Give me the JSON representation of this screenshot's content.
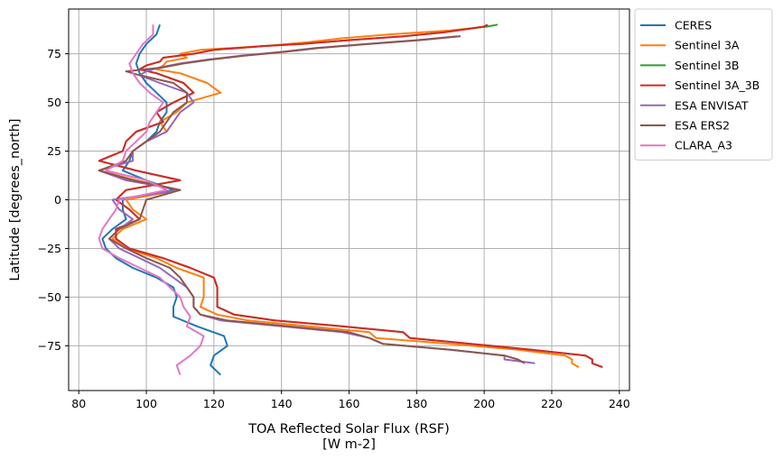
{
  "chart_data": {
    "type": "line",
    "xlabel": "TOA Reflected Solar Flux (RSF)",
    "xlabel_units": "[W m-2]",
    "ylabel": "Latitude [degrees_north]",
    "xlim": [
      77,
      243
    ],
    "ylim": [
      -98,
      98
    ],
    "xticks": [
      80,
      100,
      120,
      140,
      160,
      180,
      200,
      220,
      240
    ],
    "yticks": [
      -75,
      -50,
      -25,
      0,
      25,
      50,
      75
    ],
    "grid": true,
    "legend_position": "outside-upper-right",
    "series": [
      {
        "name": "CERES",
        "color": "#1f77b4",
        "y": [
          90,
          85,
          80,
          75,
          70,
          65,
          60,
          55,
          50,
          45,
          40,
          35,
          30,
          25,
          20,
          15,
          10,
          5,
          0,
          -5,
          -10,
          -15,
          -20,
          -25,
          -30,
          -35,
          -40,
          -45,
          -50,
          -55,
          -60,
          -65,
          -70,
          -75,
          -80,
          -85,
          -90
        ],
        "x": [
          104,
          103,
          100,
          98,
          97,
          98,
          100,
          103,
          106,
          106,
          104,
          103,
          100,
          96,
          95,
          93,
          100,
          108,
          93,
          93,
          94,
          90,
          87,
          88,
          91,
          96,
          103,
          108,
          109,
          108,
          108,
          115,
          123,
          124,
          120,
          119,
          122
        ]
      },
      {
        "name": "Sentinel 3A",
        "color": "#ff7f0e",
        "y": [
          89,
          87,
          85,
          83,
          81,
          79,
          77,
          75,
          73,
          71,
          69,
          67,
          65,
          60,
          55,
          50,
          45,
          40,
          35,
          30,
          25,
          20,
          15,
          10,
          5,
          0,
          -5,
          -10,
          -15,
          -20,
          -25,
          -30,
          -35,
          -40,
          -45,
          -50,
          -55,
          -59,
          -62,
          -65,
          -68,
          -71,
          -74,
          -77,
          -80,
          -82,
          -84,
          -86
        ],
        "x": [
          201,
          190,
          172,
          158,
          148,
          135,
          116,
          110,
          112,
          106,
          105,
          103,
          110,
          118,
          122,
          112,
          109,
          104,
          106,
          100,
          96,
          94,
          86,
          97,
          110,
          94,
          96,
          100,
          93,
          90,
          94,
          103,
          109,
          117,
          117,
          117,
          116,
          121,
          130,
          148,
          166,
          168,
          190,
          210,
          224,
          226,
          226,
          228
        ]
      },
      {
        "name": "Sentinel 3B",
        "color": "#2ca02c",
        "y": [
          90,
          89,
          88,
          86,
          84,
          82,
          80,
          79,
          77,
          75,
          73,
          71,
          69,
          67,
          65,
          60,
          55,
          50,
          45,
          40,
          35,
          30,
          25,
          20,
          15,
          10,
          5,
          0,
          -5,
          -10,
          -15,
          -20,
          -25,
          -30,
          -35,
          -40,
          -45,
          -50,
          -55,
          -59,
          -62,
          -65,
          -68,
          -71,
          -74,
          -77,
          -80,
          -82,
          -84,
          -86
        ],
        "x": [
          204,
          201,
          196,
          188,
          176,
          160,
          146,
          135,
          120,
          114,
          105,
          104,
          100,
          98,
          103,
          111,
          114,
          108,
          103,
          105,
          97,
          94,
          93,
          86,
          97,
          110,
          94,
          91,
          95,
          98,
          91,
          91,
          95,
          105,
          113,
          120,
          121,
          121,
          121,
          126,
          138,
          158,
          176,
          178,
          196,
          214,
          230,
          232,
          232,
          235
        ]
      },
      {
        "name": "Sentinel 3A_3B",
        "color": "#d62728",
        "y": [
          90,
          89,
          88,
          86,
          84,
          82,
          80,
          79,
          77,
          75,
          73,
          71,
          69,
          67,
          65,
          60,
          55,
          50,
          45,
          40,
          35,
          30,
          25,
          20,
          15,
          10,
          5,
          0,
          -5,
          -10,
          -15,
          -20,
          -25,
          -30,
          -35,
          -40,
          -45,
          -50,
          -55,
          -59,
          -62,
          -65,
          -68,
          -71,
          -74,
          -77,
          -80,
          -82,
          -84,
          -86
        ],
        "x": [
          201,
          200,
          196,
          188,
          176,
          160,
          146,
          135,
          120,
          114,
          105,
          104,
          100,
          98,
          103,
          111,
          114,
          108,
          103,
          105,
          97,
          94,
          93,
          86,
          97,
          110,
          94,
          91,
          95,
          98,
          91,
          91,
          95,
          105,
          113,
          120,
          121,
          121,
          121,
          126,
          138,
          158,
          176,
          178,
          196,
          214,
          230,
          232,
          232,
          235
        ]
      },
      {
        "name": "ESA ENVISAT",
        "color": "#9467bd",
        "y": [
          84,
          82,
          80,
          78,
          76,
          74,
          72,
          70,
          68,
          66,
          64,
          60,
          55,
          50,
          45,
          40,
          35,
          30,
          25,
          20,
          15,
          10,
          5,
          0,
          -5,
          -10,
          -15,
          -20,
          -25,
          -30,
          -35,
          -40,
          -45,
          -50,
          -55,
          -59,
          -62,
          -65,
          -68,
          -71,
          -74,
          -77,
          -80,
          -82,
          -84
        ],
        "x": [
          192,
          180,
          165,
          150,
          140,
          128,
          118,
          110,
          104,
          100,
          98,
          104,
          112,
          114,
          110,
          108,
          106,
          100,
          96,
          96,
          86,
          94,
          110,
          90,
          92,
          96,
          92,
          89,
          92,
          98,
          104,
          108,
          112,
          114,
          114,
          116,
          122,
          140,
          158,
          166,
          170,
          190,
          206,
          206,
          215
        ]
      },
      {
        "name": "ESA ERS2",
        "color": "#8c564b",
        "y": [
          84,
          82,
          80,
          78,
          76,
          74,
          72,
          70,
          68,
          66,
          64,
          60,
          55,
          50,
          45,
          40,
          35,
          30,
          25,
          20,
          15,
          10,
          5,
          0,
          -5,
          -10,
          -15,
          -20,
          -25,
          -30,
          -35,
          -40,
          -45,
          -50,
          -55,
          -59,
          -62,
          -65,
          -68,
          -71,
          -74,
          -77,
          -80,
          -82,
          -84
        ],
        "x": [
          193,
          181,
          166,
          151,
          141,
          129,
          119,
          111,
          105,
          94,
          98,
          108,
          112,
          112,
          108,
          106,
          104,
          100,
          96,
          94,
          86,
          96,
          110,
          100,
          99,
          98,
          92,
          89,
          94,
          100,
          107,
          110,
          112,
          114,
          114,
          116,
          124,
          142,
          160,
          166,
          170,
          190,
          206,
          210,
          212
        ]
      },
      {
        "name": "CLARA_A3",
        "color": "#e377c2",
        "y": [
          90,
          85,
          80,
          75,
          70,
          65,
          60,
          55,
          50,
          45,
          40,
          35,
          30,
          25,
          20,
          15,
          10,
          5,
          0,
          -5,
          -10,
          -15,
          -20,
          -25,
          -30,
          -35,
          -40,
          -45,
          -50,
          -55,
          -60,
          -65,
          -70,
          -75,
          -80,
          -85,
          -90
        ],
        "x": [
          102,
          102,
          99,
          97,
          95,
          96,
          98,
          101,
          105,
          103,
          101,
          100,
          97,
          94,
          93,
          88,
          100,
          106,
          92,
          91,
          89,
          87,
          86,
          87,
          92,
          98,
          104,
          107,
          110,
          111,
          113,
          112,
          117,
          116,
          113,
          109,
          110
        ]
      }
    ]
  }
}
